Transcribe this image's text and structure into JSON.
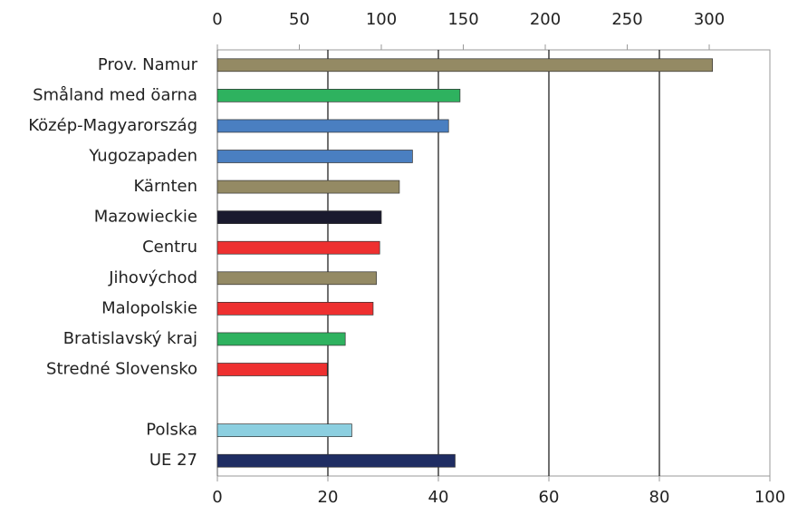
{
  "chart_data": {
    "type": "hbar",
    "categories": [
      "Prov. Namur",
      "Småland med öarna",
      "Közép-Magyarország",
      "Yugozapaden",
      "Kärnten",
      "Mazowieckie",
      "Centru",
      "Jihovýchod",
      "Malopolskie",
      "Bratislavský kraj",
      "Stredné Slovensko",
      null,
      "Polska",
      "UE 27"
    ],
    "series": [
      {
        "axis": "x2",
        "values": [
          302,
          148,
          141,
          119,
          111,
          100,
          99,
          97,
          95,
          78,
          67,
          null,
          82,
          145
        ],
        "colors": [
          "#948a64",
          "#2eb25f",
          "#4a7fc1",
          "#4a7fc1",
          "#948a64",
          "#1a1a2e",
          "#ee3030",
          "#948a64",
          "#ee3030",
          "#2eb25f",
          "#ee3030",
          null,
          "#8ccfe0",
          "#1f2d63"
        ]
      }
    ],
    "xlim": [
      0,
      100
    ],
    "xticks": [
      0,
      20,
      40,
      60,
      80,
      100
    ],
    "x2lim": [
      0,
      337
    ],
    "x2ticks": [
      0,
      50,
      100,
      150,
      200,
      250,
      300
    ],
    "grid": true
  }
}
